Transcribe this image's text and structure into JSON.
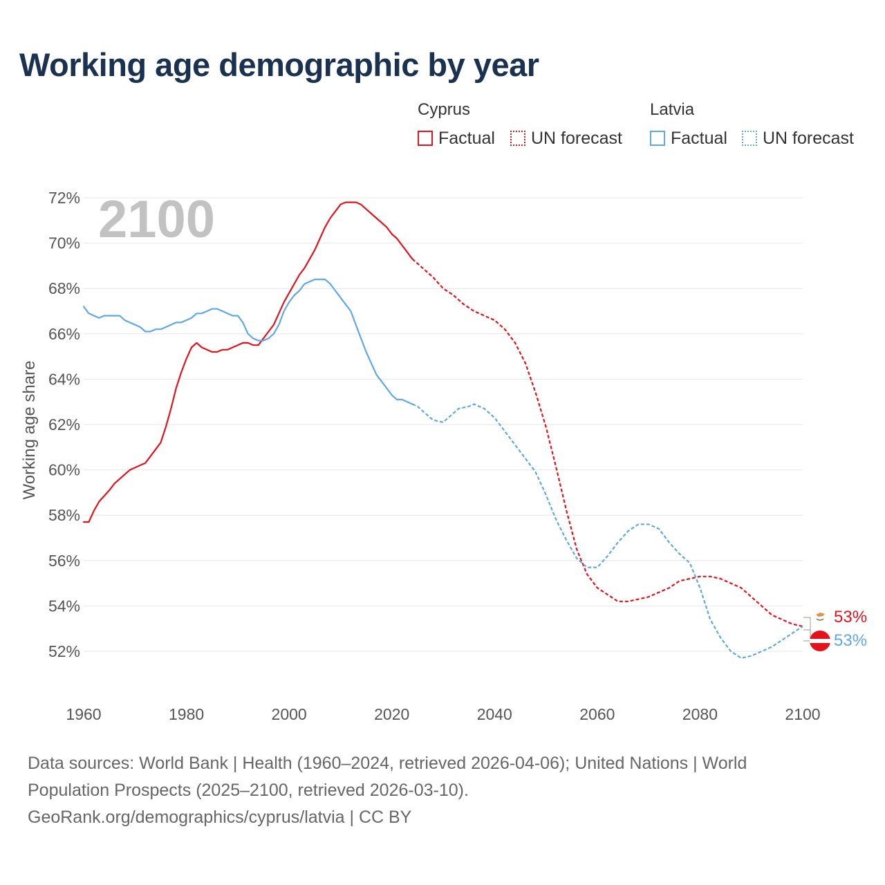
{
  "title": "Working age demographic by year",
  "legend": {
    "groups": [
      {
        "country": "Cyprus",
        "color": "#e3121b",
        "items": [
          {
            "label": "Factual",
            "style": "solid"
          },
          {
            "label": "UN forecast",
            "style": "dotted"
          }
        ]
      },
      {
        "country": "Latvia",
        "color": "#5ea8e6",
        "items": [
          {
            "label": "Factual",
            "style": "solid"
          },
          {
            "label": "UN forecast",
            "style": "dotted"
          }
        ]
      }
    ]
  },
  "year_watermark": "2100",
  "end_labels": {
    "cyprus": "53%",
    "latvia": "53%"
  },
  "sources": {
    "line1": "Data sources: World Bank | Health (1960–2024, retrieved 2026-04-06); United Nations | World",
    "line2": "Population Prospects (2025–2100, retrieved 2026-03-10).",
    "line3": "GeoRank.org/demographics/cyprus/latvia | CC BY"
  },
  "chart_data": {
    "type": "line",
    "title": "Working age demographic by year",
    "xlabel": "",
    "ylabel": "Working age share",
    "xlim": [
      1960,
      2100
    ],
    "ylim": [
      50.5,
      72.5
    ],
    "x_ticks": [
      1960,
      1980,
      2000,
      2020,
      2040,
      2060,
      2080,
      2100
    ],
    "y_ticks": [
      52,
      54,
      56,
      58,
      60,
      62,
      64,
      66,
      68,
      70,
      72
    ],
    "y_tick_labels": [
      "52%",
      "54%",
      "56%",
      "58%",
      "60%",
      "62%",
      "64%",
      "66%",
      "68%",
      "70%",
      "72%"
    ],
    "grid": true,
    "factual_end_year": 2024,
    "series": [
      {
        "name": "Cyprus",
        "color": "#e3121b",
        "points": [
          [
            1960,
            57.7
          ],
          [
            1961,
            57.7
          ],
          [
            1962,
            58.2
          ],
          [
            1963,
            58.6
          ],
          [
            1965,
            59.1
          ],
          [
            1966,
            59.4
          ],
          [
            1968,
            59.8
          ],
          [
            1969,
            60.0
          ],
          [
            1971,
            60.2
          ],
          [
            1972,
            60.3
          ],
          [
            1973,
            60.6
          ],
          [
            1975,
            61.2
          ],
          [
            1976,
            61.9
          ],
          [
            1977,
            62.7
          ],
          [
            1978,
            63.6
          ],
          [
            1979,
            64.3
          ],
          [
            1980,
            64.9
          ],
          [
            1981,
            65.4
          ],
          [
            1982,
            65.6
          ],
          [
            1983,
            65.4
          ],
          [
            1984,
            65.3
          ],
          [
            1985,
            65.2
          ],
          [
            1986,
            65.2
          ],
          [
            1987,
            65.3
          ],
          [
            1988,
            65.3
          ],
          [
            1989,
            65.4
          ],
          [
            1990,
            65.5
          ],
          [
            1991,
            65.6
          ],
          [
            1992,
            65.6
          ],
          [
            1993,
            65.5
          ],
          [
            1994,
            65.5
          ],
          [
            1995,
            65.8
          ],
          [
            1996,
            66.1
          ],
          [
            1997,
            66.4
          ],
          [
            1998,
            66.9
          ],
          [
            1999,
            67.4
          ],
          [
            2000,
            67.8
          ],
          [
            2001,
            68.2
          ],
          [
            2002,
            68.6
          ],
          [
            2003,
            68.9
          ],
          [
            2004,
            69.3
          ],
          [
            2005,
            69.7
          ],
          [
            2006,
            70.2
          ],
          [
            2007,
            70.7
          ],
          [
            2008,
            71.1
          ],
          [
            2009,
            71.4
          ],
          [
            2010,
            71.7
          ],
          [
            2011,
            71.8
          ],
          [
            2012,
            71.8
          ],
          [
            2013,
            71.8
          ],
          [
            2014,
            71.7
          ],
          [
            2015,
            71.5
          ],
          [
            2016,
            71.3
          ],
          [
            2017,
            71.1
          ],
          [
            2018,
            70.9
          ],
          [
            2019,
            70.7
          ],
          [
            2020,
            70.4
          ],
          [
            2021,
            70.2
          ],
          [
            2022,
            69.9
          ],
          [
            2023,
            69.6
          ],
          [
            2024,
            69.3
          ],
          [
            2026,
            68.9
          ],
          [
            2028,
            68.5
          ],
          [
            2030,
            68.0
          ],
          [
            2032,
            67.7
          ],
          [
            2034,
            67.3
          ],
          [
            2036,
            67.0
          ],
          [
            2038,
            66.8
          ],
          [
            2040,
            66.6
          ],
          [
            2042,
            66.2
          ],
          [
            2044,
            65.6
          ],
          [
            2046,
            64.7
          ],
          [
            2048,
            63.4
          ],
          [
            2050,
            61.9
          ],
          [
            2052,
            60.1
          ],
          [
            2054,
            58.2
          ],
          [
            2056,
            56.5
          ],
          [
            2058,
            55.4
          ],
          [
            2060,
            54.8
          ],
          [
            2062,
            54.5
          ],
          [
            2064,
            54.2
          ],
          [
            2066,
            54.2
          ],
          [
            2068,
            54.3
          ],
          [
            2070,
            54.4
          ],
          [
            2072,
            54.6
          ],
          [
            2074,
            54.8
          ],
          [
            2076,
            55.1
          ],
          [
            2078,
            55.2
          ],
          [
            2080,
            55.3
          ],
          [
            2082,
            55.3
          ],
          [
            2084,
            55.2
          ],
          [
            2086,
            55.0
          ],
          [
            2088,
            54.8
          ],
          [
            2090,
            54.4
          ],
          [
            2092,
            54.0
          ],
          [
            2094,
            53.6
          ],
          [
            2096,
            53.4
          ],
          [
            2098,
            53.2
          ],
          [
            2100,
            53.1
          ]
        ]
      },
      {
        "name": "Latvia",
        "color": "#5ea8e6",
        "points": [
          [
            1960,
            67.2
          ],
          [
            1961,
            66.9
          ],
          [
            1962,
            66.8
          ],
          [
            1963,
            66.7
          ],
          [
            1964,
            66.8
          ],
          [
            1967,
            66.8
          ],
          [
            1968,
            66.6
          ],
          [
            1970,
            66.4
          ],
          [
            1971,
            66.3
          ],
          [
            1972,
            66.1
          ],
          [
            1973,
            66.1
          ],
          [
            1974,
            66.2
          ],
          [
            1975,
            66.2
          ],
          [
            1976,
            66.3
          ],
          [
            1977,
            66.4
          ],
          [
            1978,
            66.5
          ],
          [
            1979,
            66.5
          ],
          [
            1980,
            66.6
          ],
          [
            1981,
            66.7
          ],
          [
            1982,
            66.9
          ],
          [
            1983,
            66.9
          ],
          [
            1984,
            67.0
          ],
          [
            1985,
            67.1
          ],
          [
            1986,
            67.1
          ],
          [
            1987,
            67.0
          ],
          [
            1988,
            66.9
          ],
          [
            1989,
            66.8
          ],
          [
            1990,
            66.8
          ],
          [
            1991,
            66.5
          ],
          [
            1992,
            66.0
          ],
          [
            1993,
            65.8
          ],
          [
            1994,
            65.7
          ],
          [
            1995,
            65.7
          ],
          [
            1996,
            65.8
          ],
          [
            1997,
            66.0
          ],
          [
            1998,
            66.4
          ],
          [
            1999,
            67.0
          ],
          [
            2000,
            67.4
          ],
          [
            2001,
            67.7
          ],
          [
            2002,
            67.9
          ],
          [
            2003,
            68.2
          ],
          [
            2004,
            68.3
          ],
          [
            2005,
            68.4
          ],
          [
            2006,
            68.4
          ],
          [
            2007,
            68.4
          ],
          [
            2008,
            68.2
          ],
          [
            2009,
            67.9
          ],
          [
            2010,
            67.6
          ],
          [
            2011,
            67.3
          ],
          [
            2012,
            67.0
          ],
          [
            2013,
            66.4
          ],
          [
            2014,
            65.8
          ],
          [
            2015,
            65.2
          ],
          [
            2016,
            64.7
          ],
          [
            2017,
            64.2
          ],
          [
            2018,
            63.9
          ],
          [
            2019,
            63.6
          ],
          [
            2020,
            63.3
          ],
          [
            2021,
            63.1
          ],
          [
            2022,
            63.1
          ],
          [
            2023,
            63.0
          ],
          [
            2024,
            62.9
          ],
          [
            2025,
            62.8
          ],
          [
            2027,
            62.4
          ],
          [
            2028,
            62.2
          ],
          [
            2030,
            62.1
          ],
          [
            2032,
            62.5
          ],
          [
            2033,
            62.7
          ],
          [
            2035,
            62.8
          ],
          [
            2036,
            62.9
          ],
          [
            2038,
            62.7
          ],
          [
            2040,
            62.3
          ],
          [
            2042,
            61.7
          ],
          [
            2044,
            61.1
          ],
          [
            2046,
            60.5
          ],
          [
            2048,
            59.9
          ],
          [
            2050,
            58.9
          ],
          [
            2052,
            57.8
          ],
          [
            2054,
            56.9
          ],
          [
            2056,
            56.1
          ],
          [
            2058,
            55.7
          ],
          [
            2060,
            55.7
          ],
          [
            2062,
            56.2
          ],
          [
            2064,
            56.8
          ],
          [
            2066,
            57.3
          ],
          [
            2068,
            57.6
          ],
          [
            2070,
            57.6
          ],
          [
            2072,
            57.4
          ],
          [
            2074,
            56.8
          ],
          [
            2076,
            56.3
          ],
          [
            2078,
            55.9
          ],
          [
            2080,
            54.8
          ],
          [
            2082,
            53.4
          ],
          [
            2084,
            52.6
          ],
          [
            2086,
            52.0
          ],
          [
            2088,
            51.7
          ],
          [
            2090,
            51.8
          ],
          [
            2092,
            52.0
          ],
          [
            2094,
            52.2
          ],
          [
            2096,
            52.5
          ],
          [
            2098,
            52.8
          ],
          [
            2100,
            53.1
          ]
        ]
      }
    ]
  }
}
